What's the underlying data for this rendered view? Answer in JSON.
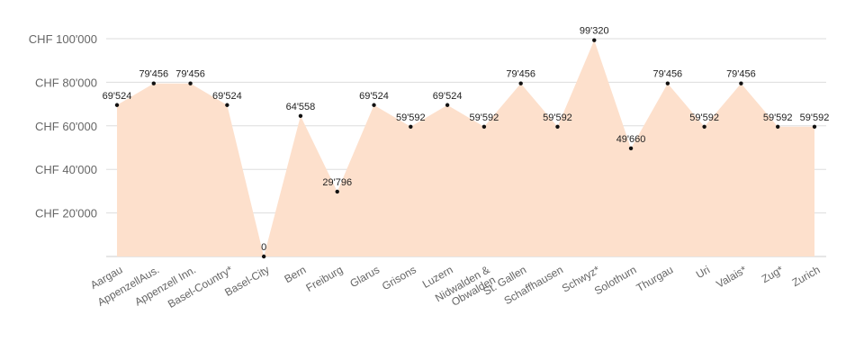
{
  "chart_data": {
    "type": "area",
    "categories": [
      "Aargau",
      "AppenzellAus.",
      "Appenzell Inn.",
      "Basel-Country*",
      "Basel-City",
      "Bern",
      "Freiburg",
      "Glarus",
      "Grisons",
      "Luzern",
      "Nidwalden &\nObwalden",
      "St. Gallen",
      "Schaffhausen",
      "Schwyz*",
      "Solothurn",
      "Thurgau",
      "Uri",
      "Valais*",
      "Zug*",
      "Zurich"
    ],
    "values": [
      69524,
      79456,
      79456,
      69524,
      0,
      64558,
      29796,
      69524,
      59592,
      69524,
      59592,
      79456,
      59592,
      99320,
      49660,
      79456,
      59592,
      79456,
      59592,
      59592
    ],
    "data_labels": [
      "69'524",
      "79'456",
      "79'456",
      "69'524",
      "0",
      "64'558",
      "29'796",
      "69'524",
      "59'592",
      "69'524",
      "59'592",
      "79'456",
      "59'592",
      "99'320",
      "49'660",
      "79'456",
      "59'592",
      "79'456",
      "59'592",
      "59'592"
    ],
    "yticks": [
      {
        "value": 20000,
        "label": "CHF 20'000"
      },
      {
        "value": 40000,
        "label": "CHF 40'000"
      },
      {
        "value": 60000,
        "label": "CHF 60'000"
      },
      {
        "value": 80000,
        "label": "CHF 80'000"
      },
      {
        "value": 100000,
        "label": "CHF 100'000"
      }
    ],
    "ylim": [
      0,
      100000
    ],
    "grid": true,
    "colors": {
      "area": "#fde0cc",
      "marker": "#111111"
    }
  }
}
